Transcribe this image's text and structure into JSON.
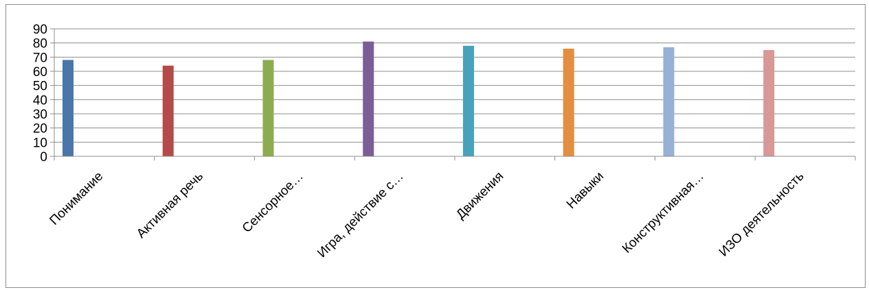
{
  "chart_data": {
    "type": "bar",
    "title": "",
    "xlabel": "",
    "ylabel": "",
    "categories": [
      "Понимание",
      "Активная речь",
      "Сенсорное…",
      "Игра, действие с…",
      "Движения",
      "Навыки",
      "Конструктивная…",
      "ИЗО деятельность"
    ],
    "series": [
      {
        "values": [
          68,
          64,
          68,
          81,
          78,
          76,
          77,
          75
        ],
        "colors": [
          "#4a76a9",
          "#b44b48",
          "#8dac50",
          "#7a5e97",
          "#47a2bb",
          "#e48e3f",
          "#97b0d6",
          "#d79897"
        ]
      }
    ],
    "ylim": [
      0,
      90
    ],
    "yticks": [
      0,
      10,
      20,
      30,
      40,
      50,
      60,
      70,
      80,
      90
    ],
    "grid": true,
    "legend": "none"
  }
}
